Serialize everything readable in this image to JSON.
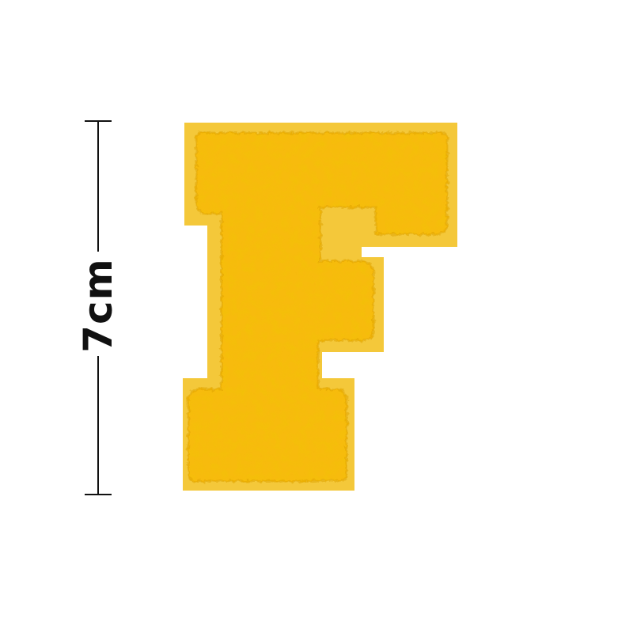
{
  "dimension": {
    "label": "7cm"
  },
  "patch": {
    "letter": "F",
    "felt_color": "#f4c83a",
    "chenille_color": "#f7bb0e",
    "chenille_shadow": "#e0a300"
  }
}
